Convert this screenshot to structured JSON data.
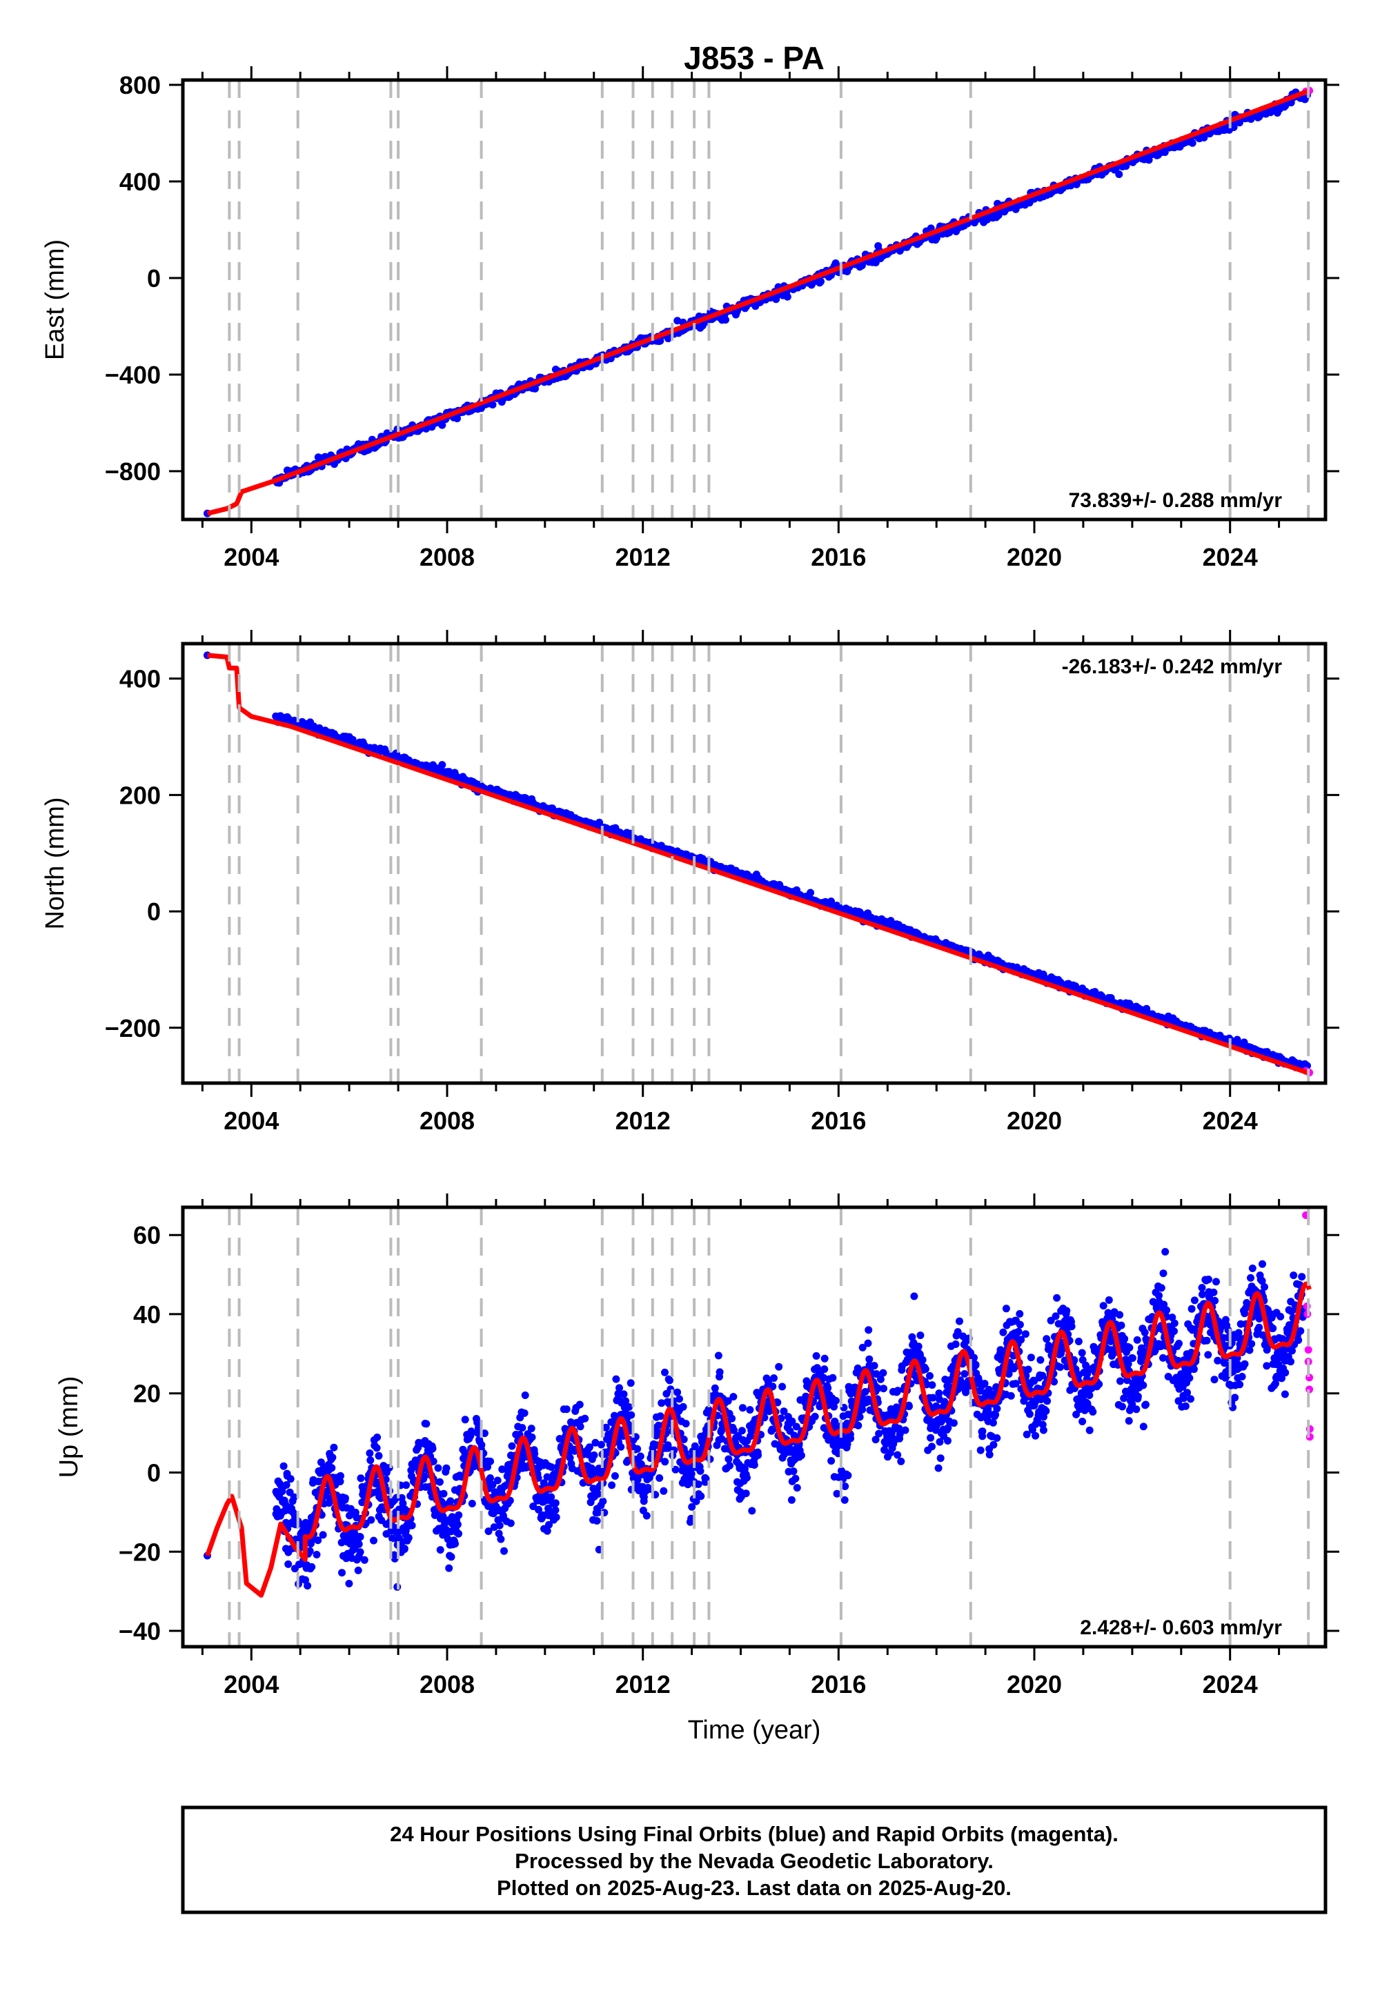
{
  "title": "J853 - PA",
  "colors": {
    "final": "#0000ff",
    "rapid": "#ff00ff",
    "model": "#ff0000",
    "breaks": "#bbbbbb"
  },
  "xlabel": "Time (year)",
  "chart_data": [
    {
      "type": "scatter",
      "panel": "east",
      "ylabel": "East (mm)",
      "xlim": [
        2002.6,
        2025.95
      ],
      "ylim": [
        -1000,
        820
      ],
      "xticks": [
        2004,
        2008,
        2012,
        2016,
        2020,
        2024
      ],
      "yticks": [
        -800,
        -400,
        0,
        400,
        800
      ],
      "rate_text": "73.839+/- 0.288 mm/yr",
      "series": [
        {
          "kind": "final-positions",
          "trend": {
            "x0": 2004.5,
            "x1": 2025.6,
            "y0": -838,
            "y1": 760
          }
        },
        {
          "kind": "rapid-positions",
          "x": [
            2025.55,
            2025.62
          ],
          "y": [
            773,
            776
          ]
        },
        {
          "kind": "model-fit",
          "x": [
            2003.1,
            2003.5,
            2003.7,
            2003.8,
            2004.5,
            2025.62
          ],
          "y": [
            -975,
            -955,
            -935,
            -885,
            -838,
            776
          ]
        }
      ]
    },
    {
      "type": "scatter",
      "panel": "north",
      "ylabel": "North (mm)",
      "xlim": [
        2002.6,
        2025.95
      ],
      "ylim": [
        -295,
        460
      ],
      "xticks": [
        2004,
        2008,
        2012,
        2016,
        2020,
        2024
      ],
      "yticks": [
        -200,
        0,
        200,
        400
      ],
      "rate_text": "-26.183+/- 0.242 mm/yr",
      "series": [
        {
          "kind": "final-positions",
          "trend": {
            "x0": 2004.5,
            "x1": 2025.6,
            "y0": 335,
            "y1": -270
          }
        },
        {
          "kind": "rapid-positions",
          "x": [
            2025.55,
            2025.62
          ],
          "y": [
            -274,
            -277
          ]
        },
        {
          "kind": "model-fit",
          "x": [
            2003.1,
            2003.5,
            2003.55,
            2003.7,
            2003.75,
            2004.0,
            2004.8,
            2025.62
          ],
          "y": [
            440,
            437,
            418,
            418,
            350,
            335,
            318,
            -278
          ]
        }
      ]
    },
    {
      "type": "scatter",
      "panel": "up",
      "ylabel": "Up (mm)",
      "xlim": [
        2002.6,
        2025.95
      ],
      "ylim": [
        -44,
        67
      ],
      "xticks": [
        2004,
        2008,
        2012,
        2016,
        2020,
        2024
      ],
      "yticks": [
        -40,
        -20,
        0,
        20,
        40,
        60
      ],
      "rate_text": "2.428+/- 0.603 mm/yr",
      "series": [
        {
          "kind": "final-positions",
          "x_range": [
            2004.5,
            2025.5
          ],
          "base_at_2004_5": -13,
          "slope_per_year": 2.43,
          "seasonal_amplitude": 8,
          "scatter_sd": 5
        },
        {
          "kind": "rapid-positions",
          "x": [
            2025.55,
            2025.57,
            2025.58,
            2025.6,
            2025.6,
            2025.62,
            2025.62,
            2025.63,
            2025.63
          ],
          "y": [
            65,
            42,
            40,
            31,
            28,
            24,
            21,
            11,
            9
          ]
        },
        {
          "kind": "model-fit",
          "x": [
            2003.1,
            2003.3,
            2003.5,
            2003.6,
            2003.8,
            2003.9,
            2004.2,
            2004.4,
            2004.6,
            2004.9,
            2005.1
          ],
          "y": [
            -21,
            -14,
            -8,
            -6,
            -14,
            -28,
            -31,
            -24,
            -13,
            -19,
            -22
          ]
        }
      ]
    }
  ],
  "break_years": [
    2003.55,
    2003.75,
    2004.95,
    2006.85,
    2007.0,
    2008.7,
    2011.17,
    2011.8,
    2012.2,
    2012.6,
    2013.05,
    2013.35,
    2016.05,
    2018.7,
    2024.0,
    2025.6
  ],
  "caption": {
    "line1": "24 Hour Positions Using Final Orbits (blue) and Rapid Orbits (magenta).",
    "line2": "Processed by the Nevada Geodetic Laboratory.",
    "line3": "Plotted on 2025-Aug-23. Last data on 2025-Aug-20."
  }
}
